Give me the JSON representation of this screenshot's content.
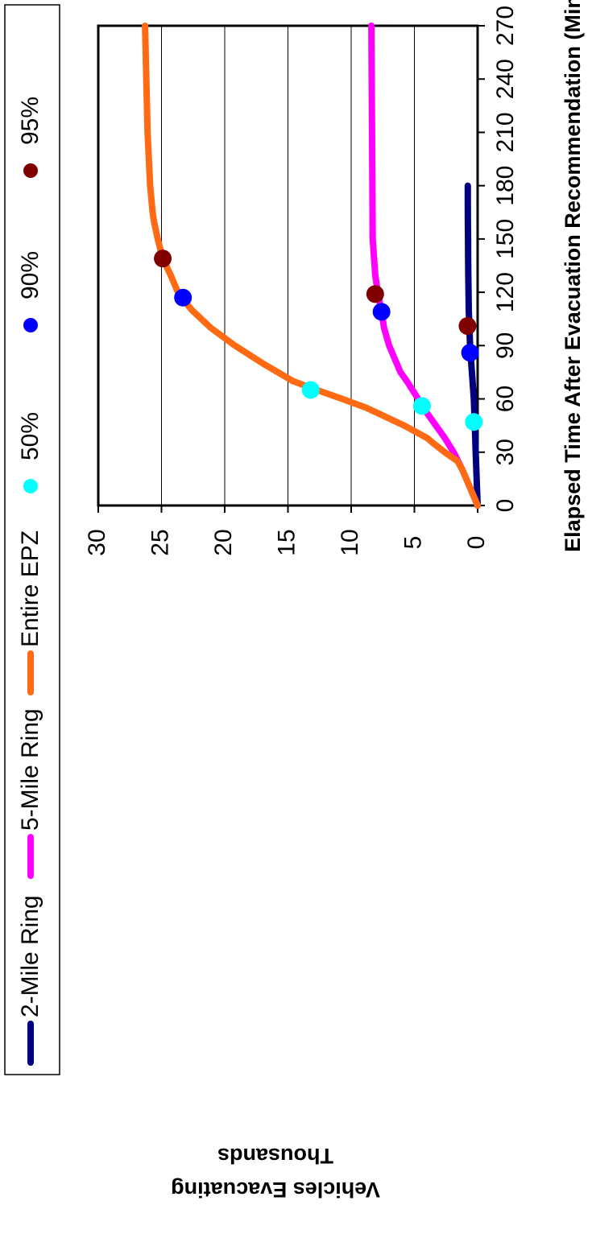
{
  "chart_data": {
    "type": "line",
    "orientation": "rotated-90-clockwise",
    "xlabel": "Elapsed Time After Evacuation Recommendation (Mins)",
    "ylabel_line1": "Vehicles Evacuating",
    "ylabel_line2": "Thousands",
    "xlim": [
      0,
      270
    ],
    "ylim": [
      0,
      30
    ],
    "xticks": [
      "0",
      "30",
      "60",
      "90",
      "120",
      "150",
      "180",
      "210",
      "240",
      "270"
    ],
    "yticks": [
      "0",
      "5",
      "10",
      "15",
      "20",
      "25",
      "30"
    ],
    "grid": "horizontal major gridlines",
    "legend_position": "top",
    "series": [
      {
        "name": "2-Mile Ring",
        "color": "#000080",
        "x": [
          0,
          10,
          20,
          30,
          40,
          50,
          60,
          70,
          80,
          90,
          100,
          110,
          120,
          130,
          140,
          150,
          160,
          170,
          180
        ],
        "y": [
          0,
          0.05,
          0.1,
          0.15,
          0.2,
          0.25,
          0.3,
          0.4,
          0.5,
          0.6,
          0.65,
          0.7,
          0.72,
          0.74,
          0.75,
          0.76,
          0.77,
          0.78,
          0.78
        ]
      },
      {
        "name": "5-Mile Ring",
        "color": "#FF00FF",
        "x": [
          0,
          10,
          20,
          30,
          38,
          45,
          50,
          56,
          60,
          70,
          75,
          80,
          90,
          100,
          109,
          120,
          130,
          140,
          150,
          270
        ],
        "y": [
          0,
          0.6,
          1.2,
          1.9,
          2.6,
          3.3,
          3.8,
          4.4,
          4.7,
          5.6,
          6.1,
          6.4,
          7.0,
          7.4,
          7.6,
          7.9,
          8.1,
          8.2,
          8.3,
          8.4
        ]
      },
      {
        "name": "Entire EPZ",
        "color": "#FF6A13",
        "x": [
          0,
          10,
          15,
          20,
          25,
          30,
          35,
          38,
          45,
          50,
          55,
          60,
          65,
          70,
          80,
          90,
          100,
          110,
          117,
          120,
          130,
          139,
          150,
          160,
          165,
          180,
          195,
          210,
          270
        ],
        "y": [
          0,
          0.6,
          0.9,
          1.2,
          1.6,
          2.6,
          3.5,
          4.0,
          5.8,
          7.3,
          8.8,
          10.7,
          12.7,
          14.6,
          17.0,
          19.2,
          21.1,
          22.6,
          23.4,
          23.7,
          24.3,
          24.9,
          25.3,
          25.6,
          25.7,
          25.9,
          26.0,
          26.1,
          26.3
        ]
      }
    ],
    "markers": [
      {
        "name": "50%",
        "color": "#00FFFF",
        "points": [
          [
            47,
            0.3
          ],
          [
            56,
            4.4
          ],
          [
            65,
            13.2
          ]
        ]
      },
      {
        "name": "90%",
        "color": "#0000FF",
        "points": [
          [
            86,
            0.6
          ],
          [
            109,
            7.6
          ],
          [
            117,
            23.3
          ]
        ]
      },
      {
        "name": "95%",
        "color": "#800000",
        "points": [
          [
            101,
            0.8
          ],
          [
            119,
            8.1
          ],
          [
            139,
            24.9
          ]
        ]
      }
    ]
  }
}
